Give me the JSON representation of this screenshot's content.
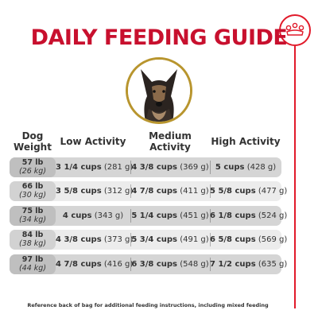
{
  "title": "DAILY FEEDING GUIDE",
  "brand": {
    "accent_color": "#c8102e",
    "logo": "crown-logo-icon",
    "frame_color": "#b8952e"
  },
  "dog_photo": {
    "icon": "german-shepherd-photo"
  },
  "table": {
    "headers": {
      "weight": "Dog Weight",
      "low": "Low Activity",
      "medium": "Medium Activity",
      "high": "High Activity"
    },
    "rows": [
      {
        "lb": "57 lb",
        "kg": "(26 kg)",
        "low_cups": "3 1/4 cups",
        "low_g": "(281 g)",
        "med_cups": "4 3/8 cups",
        "med_g": "(369 g)",
        "high_cups": "5 cups",
        "high_g": "(428 g)"
      },
      {
        "lb": "66 lb",
        "kg": "(30 kg)",
        "low_cups": "3 5/8 cups",
        "low_g": "(312 g)",
        "med_cups": "4 7/8 cups",
        "med_g": "(411 g)",
        "high_cups": "5 5/8 cups",
        "high_g": "(477 g)"
      },
      {
        "lb": "75 lb",
        "kg": "(34 kg)",
        "low_cups": "4 cups",
        "low_g": "(343 g)",
        "med_cups": "5 1/4 cups",
        "med_g": "(451 g)",
        "high_cups": "6 1/8 cups",
        "high_g": "(524 g)"
      },
      {
        "lb": "84 lb",
        "kg": "(38 kg)",
        "low_cups": "4 3/8 cups",
        "low_g": "(373 g)",
        "med_cups": "5 3/4 cups",
        "med_g": "(491 g)",
        "high_cups": "6 5/8 cups",
        "high_g": "(569 g)"
      },
      {
        "lb": "97 lb",
        "kg": "(44 kg)",
        "low_cups": "4 7/8 cups",
        "low_g": "(416 g)",
        "med_cups": "6 3/8 cups",
        "med_g": "(548 g)",
        "high_cups": "7 1/2 cups",
        "high_g": "(635 g)"
      }
    ]
  },
  "footnote": "Reference back of bag for additional feeding instructions, including mixed feeding"
}
